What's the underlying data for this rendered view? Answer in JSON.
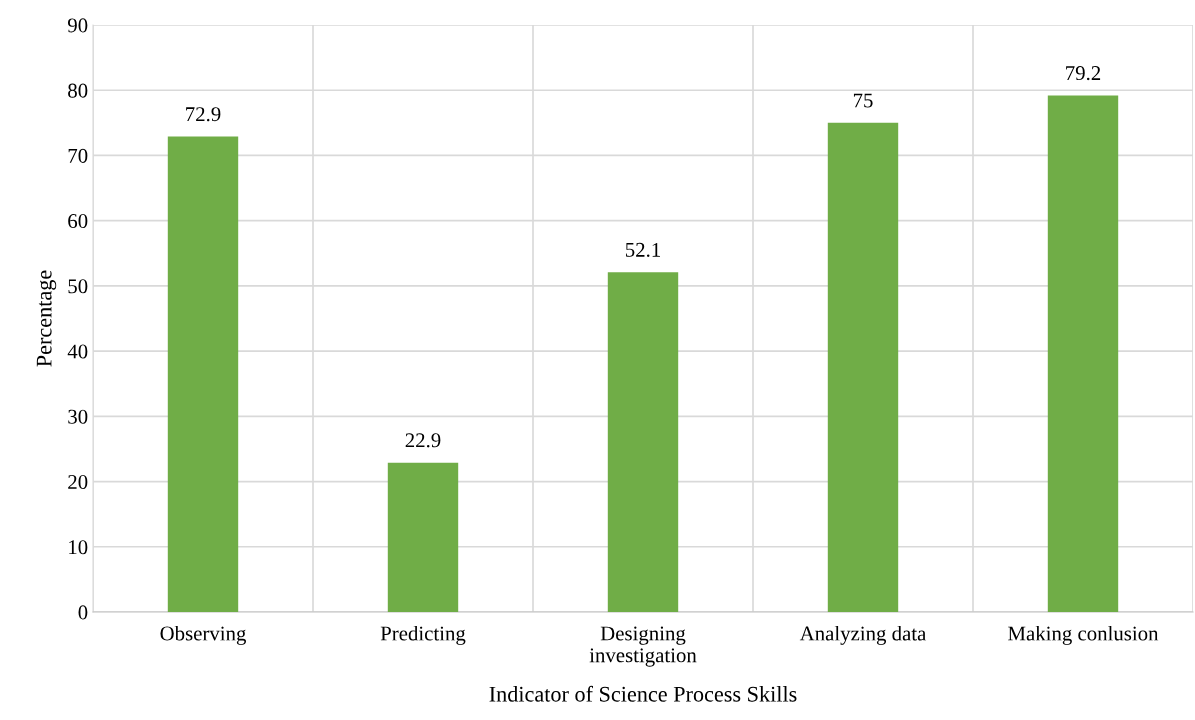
{
  "chart_data": {
    "type": "bar",
    "xlabel": "Indicator of Science Process Skills",
    "ylabel": "Percentage",
    "categories": [
      "Observing",
      "Predicting",
      "Designing\ninvestigation",
      "Analyzing data",
      "Making conlusion"
    ],
    "values": [
      72.9,
      22.9,
      52.1,
      75,
      79.2
    ],
    "color": "#70ad47",
    "ylim": [
      0,
      90
    ],
    "yticks": [
      0,
      10,
      20,
      30,
      40,
      50,
      60,
      70,
      80,
      90
    ],
    "grid": true,
    "data_labels": true
  }
}
